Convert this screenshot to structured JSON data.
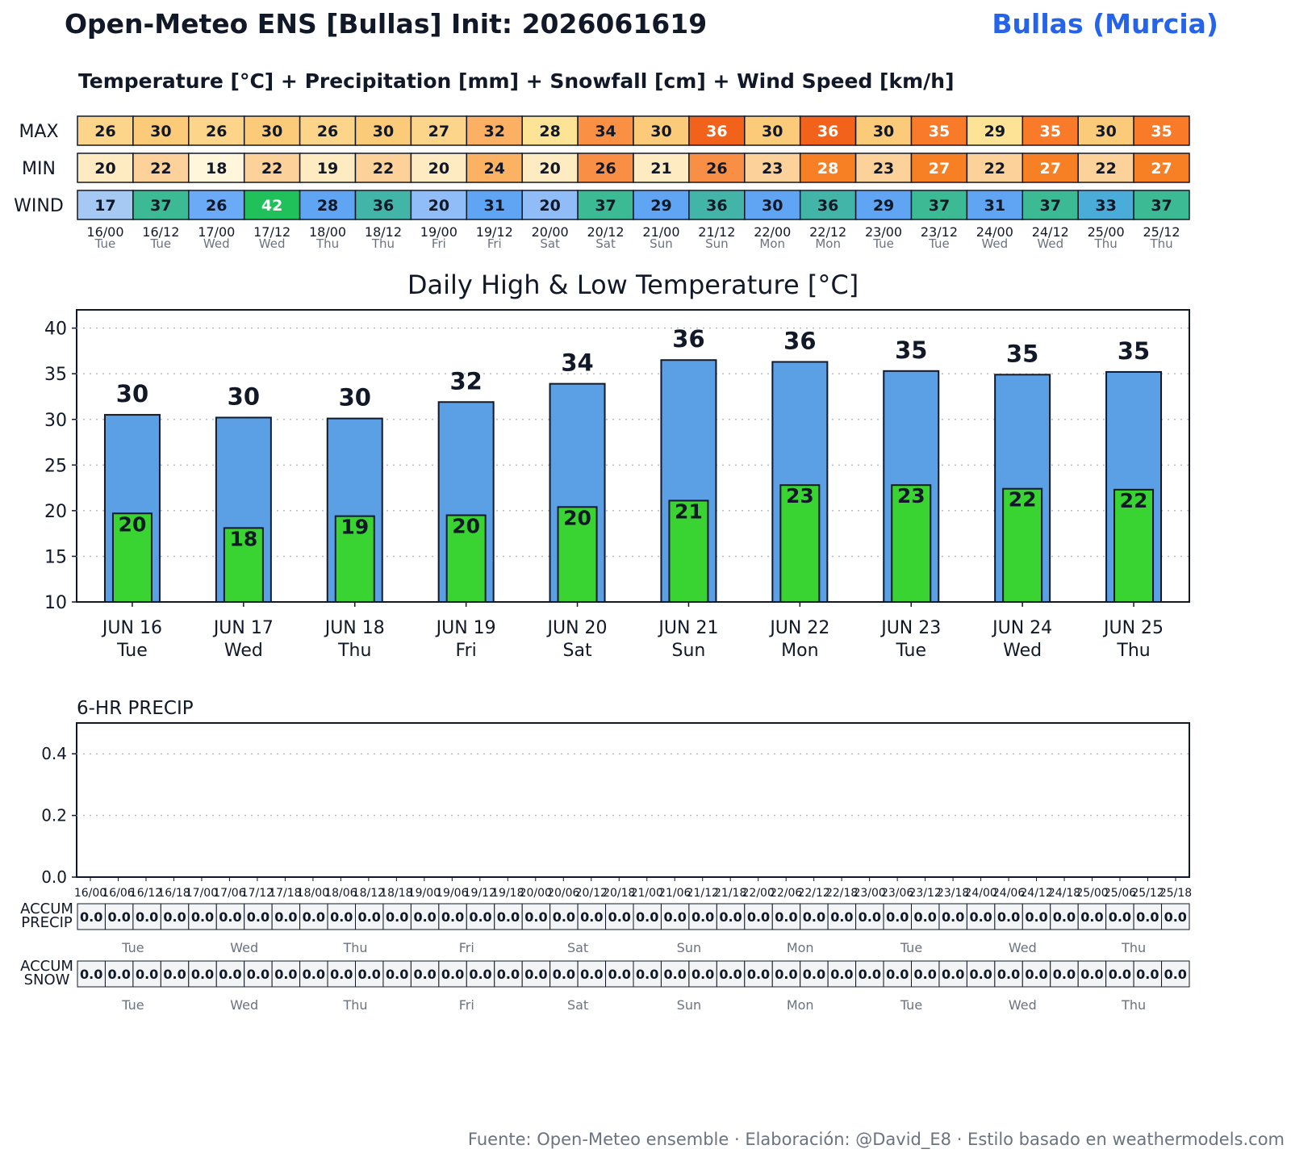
{
  "header": {
    "title": "Open-Meteo ENS [Bullas] Init: 2026061619",
    "location": "Bullas (Murcia)",
    "subtitle": "Temperature [°C] + Precipitation [mm] + Snowfall [cm] + Wind Speed [km/h]"
  },
  "footer": {
    "source": "Fuente: Open-Meteo ensemble · Elaboración: @David_E8 · Estilo basado en weathermodels.com"
  },
  "chart_data": [
    {
      "type": "table",
      "row_labels": [
        "MAX",
        "MIN",
        "WIND"
      ],
      "columns": [
        "16/00",
        "16/12",
        "17/00",
        "17/12",
        "18/00",
        "18/12",
        "19/00",
        "19/12",
        "20/00",
        "20/12",
        "21/00",
        "21/12",
        "22/00",
        "22/12",
        "23/00",
        "23/12",
        "24/00",
        "24/12",
        "25/00",
        "25/12"
      ],
      "column_days": [
        "Tue",
        "Tue",
        "Wed",
        "Wed",
        "Thu",
        "Thu",
        "Fri",
        "Fri",
        "Sat",
        "Sat",
        "Sun",
        "Sun",
        "Mon",
        "Mon",
        "Tue",
        "Tue",
        "Wed",
        "Wed",
        "Thu",
        "Thu"
      ],
      "max": [
        26,
        30,
        26,
        30,
        26,
        30,
        27,
        32,
        28,
        34,
        30,
        36,
        30,
        36,
        30,
        35,
        29,
        35,
        30,
        35
      ],
      "min": [
        20,
        22,
        18,
        22,
        19,
        22,
        20,
        24,
        20,
        26,
        21,
        26,
        23,
        28,
        23,
        27,
        22,
        27,
        22,
        27
      ],
      "wind": [
        17,
        37,
        26,
        42,
        28,
        36,
        20,
        31,
        20,
        37,
        29,
        36,
        30,
        36,
        29,
        37,
        31,
        37,
        33,
        37
      ]
    },
    {
      "type": "bar",
      "title": "Daily High & Low Temperature [°C]",
      "categories": [
        "JUN 16",
        "JUN 17",
        "JUN 18",
        "JUN 19",
        "JUN 20",
        "JUN 21",
        "JUN 22",
        "JUN 23",
        "JUN 24",
        "JUN 25"
      ],
      "category_days": [
        "Tue",
        "Wed",
        "Thu",
        "Fri",
        "Sat",
        "Sun",
        "Mon",
        "Tue",
        "Wed",
        "Thu"
      ],
      "series": [
        {
          "values": [
            30.5,
            30.2,
            30.1,
            31.9,
            33.9,
            36.5,
            36.3,
            35.3,
            34.9,
            35.2
          ],
          "labels": [
            "30",
            "30",
            "30",
            "32",
            "34",
            "36",
            "36",
            "35",
            "35",
            "35"
          ],
          "color": "#5ba0e5"
        },
        {
          "values": [
            19.7,
            18.1,
            19.4,
            19.5,
            20.4,
            21.1,
            22.8,
            22.8,
            22.4,
            22.3
          ],
          "labels": [
            "20",
            "18",
            "19",
            "20",
            "20",
            "21",
            "23",
            "23",
            "22",
            "22"
          ],
          "color": "#3ad432"
        }
      ],
      "ylim": [
        10,
        42
      ],
      "yticks": [
        10,
        15,
        20,
        25,
        30,
        35,
        40
      ],
      "grid": true
    },
    {
      "type": "bar",
      "title": "6-HR PRECIP",
      "x": [
        "16/00",
        "16/06",
        "16/12",
        "16/18",
        "17/00",
        "17/06",
        "17/12",
        "17/18",
        "18/00",
        "18/06",
        "18/12",
        "18/18",
        "19/00",
        "19/06",
        "19/12",
        "19/18",
        "20/00",
        "20/06",
        "20/12",
        "20/18",
        "21/00",
        "21/06",
        "21/12",
        "21/18",
        "22/00",
        "22/06",
        "22/12",
        "22/18",
        "23/00",
        "23/06",
        "23/12",
        "23/18",
        "24/00",
        "24/06",
        "24/12",
        "24/18",
        "25/00",
        "25/06",
        "25/12",
        "25/18"
      ],
      "values": [
        0,
        0,
        0,
        0,
        0,
        0,
        0,
        0,
        0,
        0,
        0,
        0,
        0,
        0,
        0,
        0,
        0,
        0,
        0,
        0,
        0,
        0,
        0,
        0,
        0,
        0,
        0,
        0,
        0,
        0,
        0,
        0,
        0,
        0,
        0,
        0,
        0,
        0,
        0,
        0
      ],
      "ylim": [
        0,
        0.5
      ],
      "yticks": [
        "0.0",
        "0.2",
        "0.4"
      ],
      "grid": true
    },
    {
      "type": "table",
      "row_label": "ACCUM PRECIP",
      "values": [
        "0.0",
        "0.0",
        "0.0",
        "0.0",
        "0.0",
        "0.0",
        "0.0",
        "0.0",
        "0.0",
        "0.0",
        "0.0",
        "0.0",
        "0.0",
        "0.0",
        "0.0",
        "0.0",
        "0.0",
        "0.0",
        "0.0",
        "0.0",
        "0.0",
        "0.0",
        "0.0",
        "0.0",
        "0.0",
        "0.0",
        "0.0",
        "0.0",
        "0.0",
        "0.0",
        "0.0",
        "0.0",
        "0.0",
        "0.0",
        "0.0",
        "0.0",
        "0.0",
        "0.0",
        "0.0",
        "0.0"
      ],
      "day_labels": [
        "Tue",
        "Wed",
        "Thu",
        "Fri",
        "Sat",
        "Sun",
        "Mon",
        "Tue",
        "Wed",
        "Thu"
      ]
    },
    {
      "type": "table",
      "row_label": "ACCUM SNOW",
      "values": [
        "0.0",
        "0.0",
        "0.0",
        "0.0",
        "0.0",
        "0.0",
        "0.0",
        "0.0",
        "0.0",
        "0.0",
        "0.0",
        "0.0",
        "0.0",
        "0.0",
        "0.0",
        "0.0",
        "0.0",
        "0.0",
        "0.0",
        "0.0",
        "0.0",
        "0.0",
        "0.0",
        "0.0",
        "0.0",
        "0.0",
        "0.0",
        "0.0",
        "0.0",
        "0.0",
        "0.0",
        "0.0",
        "0.0",
        "0.0",
        "0.0",
        "0.0",
        "0.0",
        "0.0",
        "0.0",
        "0.0"
      ],
      "day_labels": [
        "Tue",
        "Wed",
        "Thu",
        "Fri",
        "Sat",
        "Sun",
        "Mon",
        "Tue",
        "Wed",
        "Thu"
      ]
    }
  ]
}
